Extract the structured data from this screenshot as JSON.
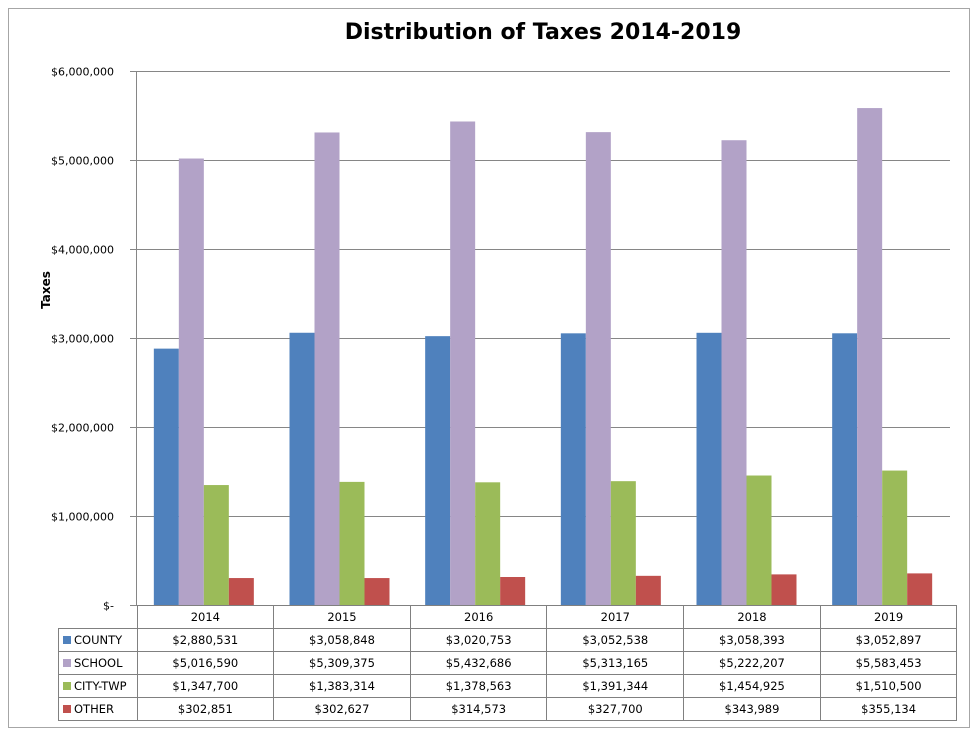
{
  "chart_data": {
    "type": "bar",
    "title": "Distribution of Taxes 2014-2019",
    "xlabel": "",
    "ylabel": "Taxes",
    "categories": [
      "2014",
      "2015",
      "2016",
      "2017",
      "2018",
      "2019"
    ],
    "ylim": [
      0,
      6000000
    ],
    "ytick_labels": [
      "$-",
      "$1,000,000",
      "$2,000,000",
      "$3,000,000",
      "$4,000,000",
      "$5,000,000",
      "$6,000,000"
    ],
    "grid": true,
    "legend": "data table rows (bottom)",
    "series": [
      {
        "name": "COUNTY",
        "color": "#4f81bd",
        "values": [
          2880531,
          3058848,
          3020753,
          3052538,
          3058393,
          3052897
        ],
        "labels": [
          "$2,880,531",
          "$3,058,848",
          "$3,020,753",
          "$3,052,538",
          "$3,058,393",
          "$3,052,897"
        ]
      },
      {
        "name": "SCHOOL",
        "color": "#b2a2c7",
        "values": [
          5016590,
          5309375,
          5432686,
          5313165,
          5222207,
          5583453
        ],
        "labels": [
          "$5,016,590",
          "$5,309,375",
          "$5,432,686",
          "$5,313,165",
          "$5,222,207",
          "$5,583,453"
        ]
      },
      {
        "name": "CITY-TWP",
        "color": "#9bbb59",
        "values": [
          1347700,
          1383314,
          1378563,
          1391344,
          1454925,
          1510500
        ],
        "labels": [
          "$1,347,700",
          "$1,383,314",
          "$1,378,563",
          "$1,391,344",
          "$1,454,925",
          "$1,510,500"
        ]
      },
      {
        "name": "OTHER",
        "color": "#c0504d",
        "values": [
          302851,
          302627,
          314573,
          327700,
          343989,
          355134
        ],
        "labels": [
          "$302,851",
          "$302,627",
          "$314,573",
          "$327,700",
          "$343,989",
          "$355,134"
        ]
      }
    ]
  }
}
